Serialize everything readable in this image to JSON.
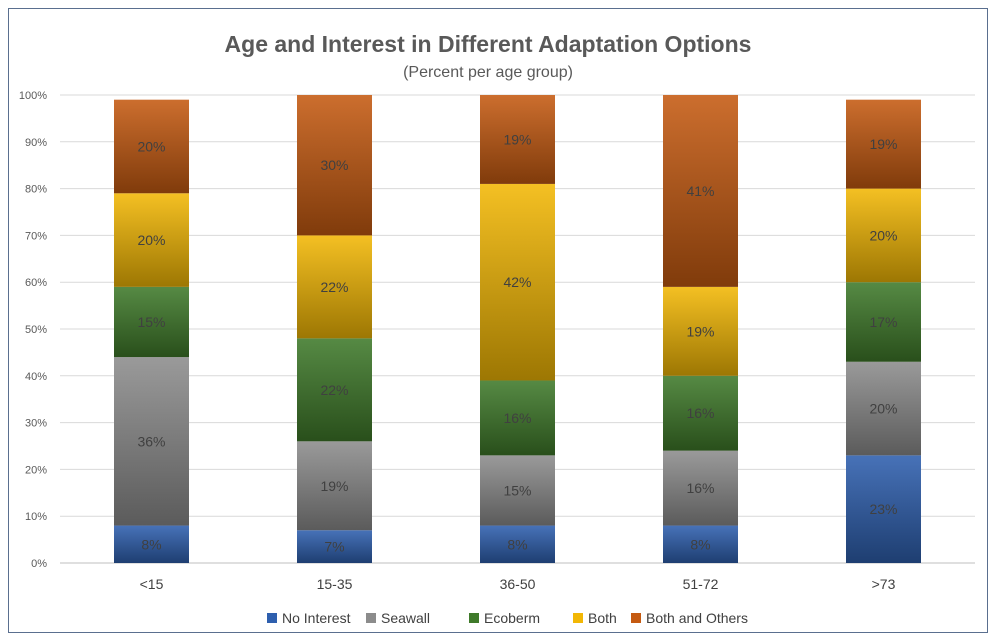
{
  "chart_data": {
    "type": "bar",
    "stacked": true,
    "title": "Age and Interest in Different Adaptation Options",
    "subtitle": "(Percent per age group)",
    "categories": [
      "<15",
      "15-35",
      "36-50",
      "51-72",
      ">73"
    ],
    "ylim": [
      0,
      100
    ],
    "yticks": [
      "0%",
      "10%",
      "20%",
      "30%",
      "40%",
      "50%",
      "60%",
      "70%",
      "80%",
      "90%",
      "100%"
    ],
    "grid": true,
    "legend_position": "bottom",
    "series": [
      {
        "name": "No Interest",
        "color": "#2e5fae",
        "values": [
          8,
          7,
          8,
          8,
          23
        ],
        "labels": [
          "8%",
          "7%",
          "8%",
          "8%",
          "23%"
        ]
      },
      {
        "name": "Seawall",
        "color": "#8c8c8c",
        "values": [
          36,
          19,
          15,
          16,
          20
        ],
        "labels": [
          "36%",
          "19%",
          "15%",
          "16%",
          "20%"
        ]
      },
      {
        "name": "Ecoberm",
        "color": "#3f7a2a",
        "values": [
          15,
          22,
          16,
          16,
          17
        ],
        "labels": [
          "15%",
          "22%",
          "16%",
          "16%",
          "17%"
        ]
      },
      {
        "name": "Both",
        "color": "#f2b705",
        "values": [
          20,
          22,
          42,
          19,
          20
        ],
        "labels": [
          "20%",
          "22%",
          "42%",
          "19%",
          "20%"
        ]
      },
      {
        "name": "Both and Others",
        "color": "#c55a11",
        "values": [
          20,
          30,
          19,
          41,
          19
        ],
        "labels": [
          "20%",
          "30%",
          "19%",
          "41%",
          "19%"
        ]
      }
    ]
  }
}
